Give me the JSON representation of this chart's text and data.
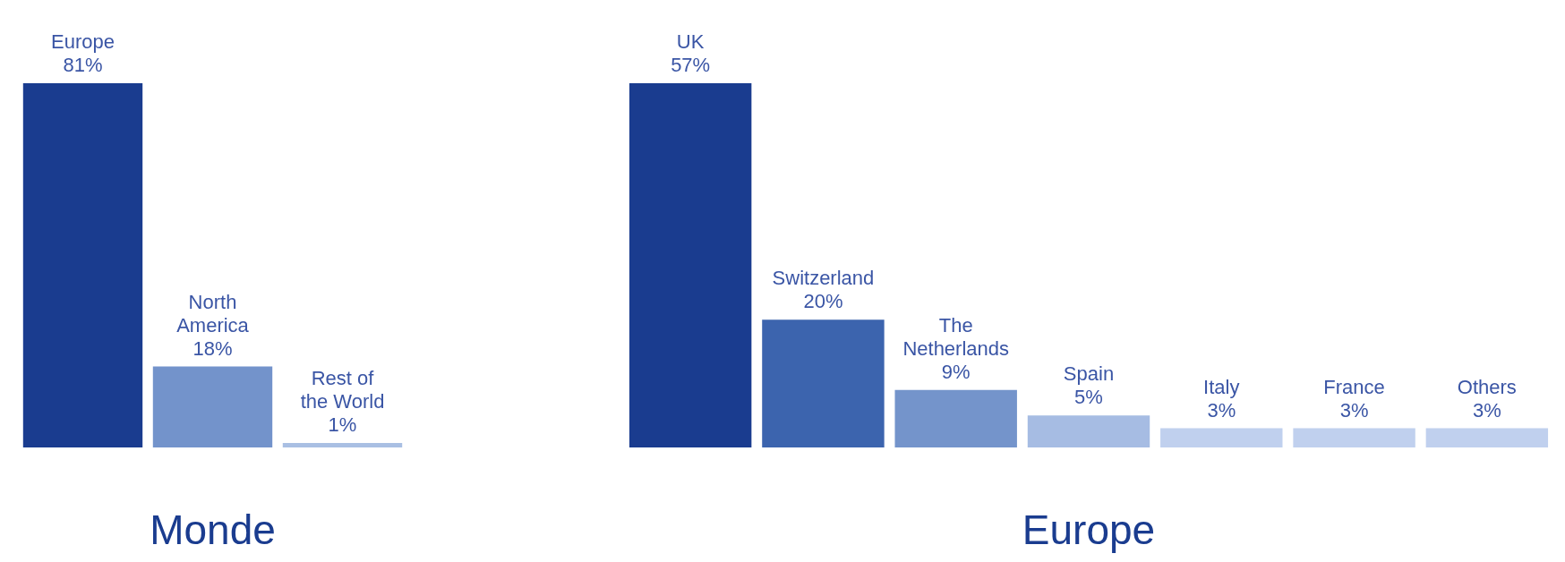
{
  "chart_data": [
    {
      "type": "bar",
      "title": "Monde",
      "categories": [
        "Europe",
        "North\nAmerica",
        "Rest of\nthe World"
      ],
      "values": [
        81,
        18,
        1
      ],
      "value_labels": [
        "81%",
        "18%",
        "1%"
      ],
      "colors": [
        "#1a3c8f",
        "#7393cb",
        "#a9bfe3"
      ]
    },
    {
      "type": "bar",
      "title": "Europe",
      "categories": [
        "UK",
        "Switzerland",
        "The\nNetherlands",
        "Spain",
        "Italy",
        "France",
        "Others"
      ],
      "values": [
        57,
        20,
        9,
        5,
        3,
        3,
        3
      ],
      "value_labels": [
        "57%",
        "20%",
        "9%",
        "5%",
        "3%",
        "3%",
        "3%"
      ],
      "colors": [
        "#1a3c8f",
        "#3c64ae",
        "#7494cb",
        "#a6bce3",
        "#c0d0ee",
        "#c0d0ee",
        "#c0d0ee"
      ]
    }
  ]
}
